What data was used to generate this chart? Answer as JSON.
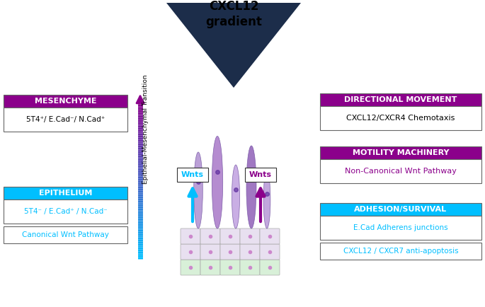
{
  "bg_color": "#ffffff",
  "title_text": "CXCL12\ngradient",
  "dark_navy": "#1C2D4A",
  "left_top_bg": "#8B008B",
  "left_top_label": "MESENCHYME",
  "left_top_sub": "5T4⁺/ E.Cad⁻/ N.Cad⁺",
  "left_bot_bg": "#00BFFF",
  "left_bot_label": "EPITHELIUM",
  "left_bot_sub": "5T4⁻ / E.Cad⁺ / N.Cad⁻",
  "left_bot_sub2": "Canonical Wnt Pathway",
  "right1_bg": "#8B008B",
  "right1_label": "DIRECTIONAL MOVEMENT",
  "right1_sub": "CXCL12/CXCR4 Chemotaxis",
  "right2_bg": "#8B008B",
  "right2_label": "MOTILITY MACHINERY",
  "right2_sub": "Non-Canonical Wnt Pathway",
  "right3_bg": "#00BFFF",
  "right3_label": "ADHESION/SURVIVAL",
  "right3_sub1": "E.Cad Adherens junctions",
  "right3_sub2": "CXCL12 / CXCR7 anti-apoptosis",
  "emt_label": "Epithelial-Mesenchymal Transition",
  "wnts_label": "Wnts",
  "purple": "#8B008B",
  "cyan": "#00BFFF",
  "black": "#000000",
  "border": "#666666"
}
